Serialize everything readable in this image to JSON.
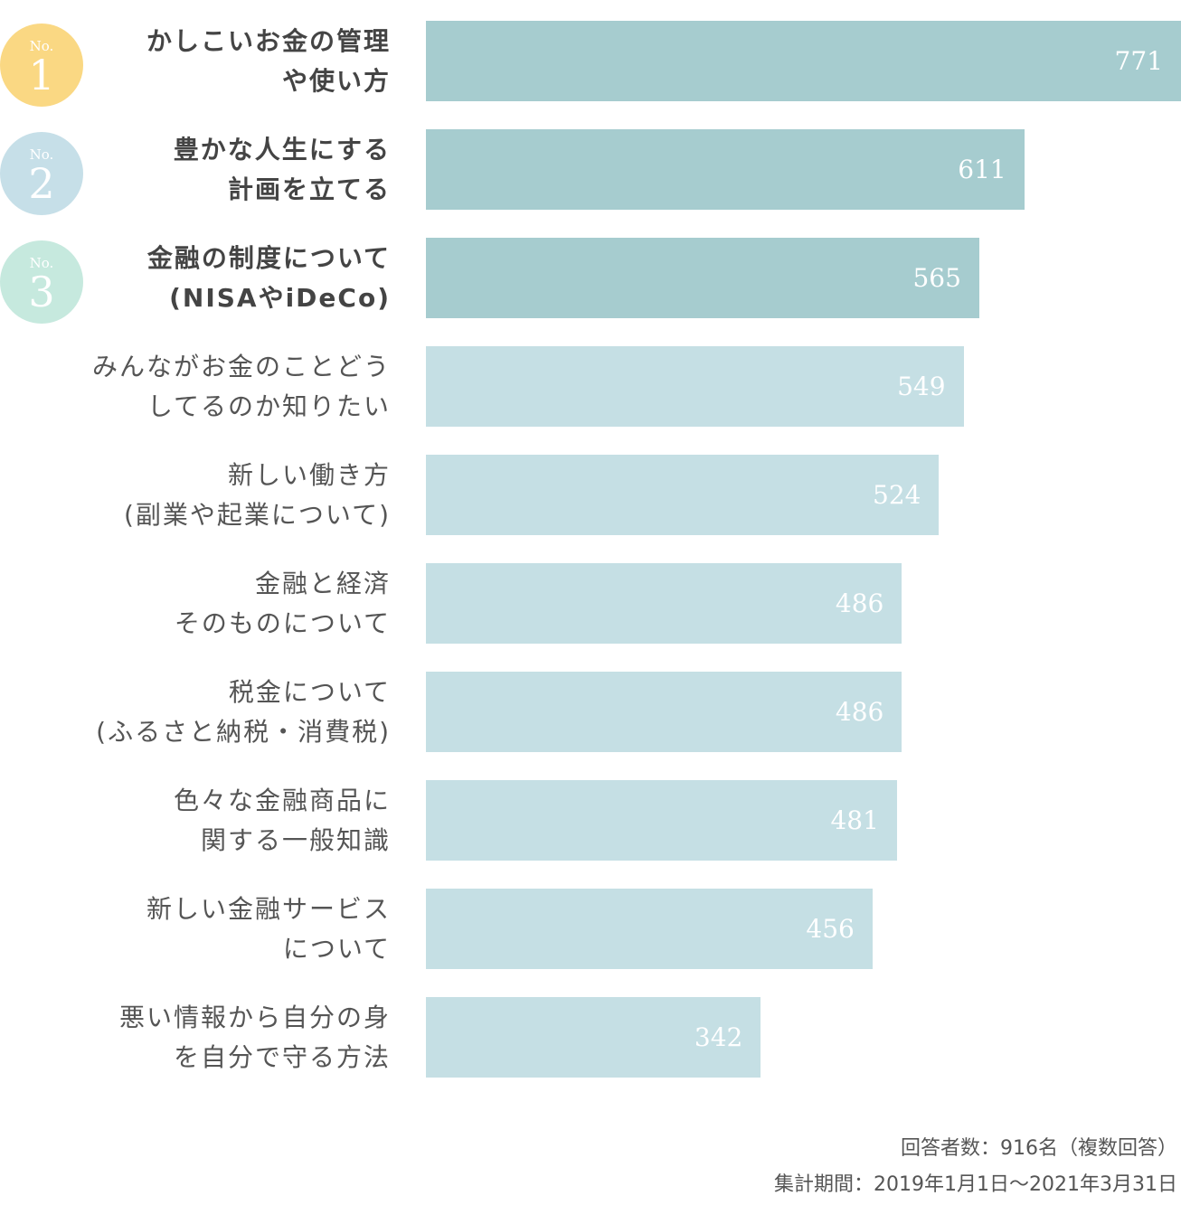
{
  "chart_data": {
    "type": "bar",
    "orientation": "horizontal",
    "categories": [
      "かしこいお金の管理\nや使い方",
      "豊かな人生にする\n計画を立てる",
      "金融の制度について\n(NISAやiDeCo)",
      "みんながお金のことどう\nしてるのか知りたい",
      "新しい働き方\n(副業や起業について)",
      "金融と経済\nそのものについて",
      "税金について\n(ふるさと納税・消費税)",
      "色々な金融商品に\n関する一般知識",
      "新しい金融サービス\nについて",
      "悪い情報から自分の身\nを自分で守る方法"
    ],
    "values": [
      771,
      611,
      565,
      549,
      524,
      486,
      486,
      481,
      456,
      342
    ],
    "colors": [
      "#a6cccf",
      "#a6cccf",
      "#a6cccf",
      "#c5dfe4",
      "#c5dfe4",
      "#c5dfe4",
      "#c5dfe4",
      "#c5dfe4",
      "#c5dfe4",
      "#c5dfe4"
    ],
    "ranks": [
      {
        "label": "No.",
        "number": 1,
        "color": "#fad883"
      },
      {
        "label": "No.",
        "number": 2,
        "color": "#c6dfe8"
      },
      {
        "label": "No.",
        "number": 3,
        "color": "#c6e9de"
      }
    ],
    "notes": [
      "回答者数：916名（複数回答）",
      "集計期間：2019年1月1日〜2021年3月31日"
    ]
  }
}
